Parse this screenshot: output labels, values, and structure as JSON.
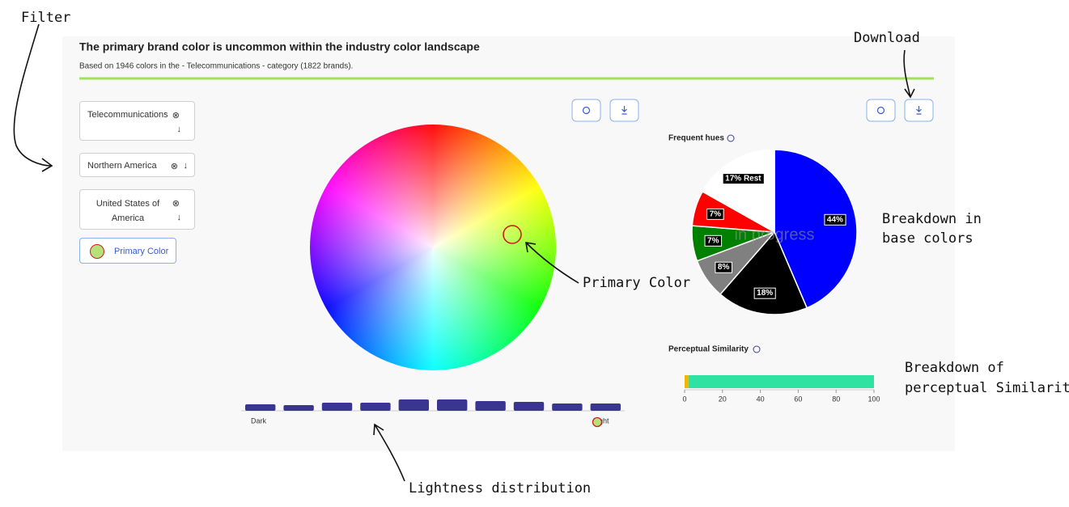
{
  "header": {
    "title": "The primary brand color is uncommon within the industry color landscape",
    "subtitle": "Based on 1946 colors in the - Telecommunications - category (1822 brands)."
  },
  "filters": [
    "Telecommunications",
    "Northern America",
    "United States of America"
  ],
  "legend": "Primary Color",
  "annotations": {
    "filter": [
      "Filter"
    ],
    "download": [
      "Download"
    ],
    "base_colors": [
      "Breakdown in",
      "base colors"
    ],
    "primary_color": [
      "Primary Color"
    ],
    "similarity": [
      "Breakdown of",
      "perceptual Similarity"
    ],
    "lightness": [
      "Lightness distribution"
    ]
  },
  "chart_data": [
    {
      "type": "pie",
      "title": "Frequent hues",
      "watermark": "in progress",
      "values": [
        44,
        18,
        8,
        7,
        7,
        17
      ],
      "value_labels": [
        "44%",
        "18%",
        "8%",
        "7%",
        "7%",
        "17% Rest"
      ],
      "colors": [
        "#0000ff",
        "#000000",
        "#808080",
        "#008000",
        "#ff0000",
        "#ffffff"
      ]
    },
    {
      "type": "bar",
      "axis_labels": [
        "Dark",
        "Light"
      ],
      "color": "#3b3592",
      "values": [
        8,
        7,
        10,
        10,
        14,
        14,
        12,
        11,
        9,
        9
      ]
    },
    {
      "type": "stacked_bar",
      "title": "Perceptual Similarity",
      "xlim": [
        0,
        100
      ],
      "xticks": [
        0,
        20,
        40,
        60,
        80,
        100
      ],
      "series": [
        {
          "color": "#f5b400",
          "values": [
            2
          ]
        },
        {
          "color": "#2ee3a2",
          "values": [
            98
          ]
        }
      ]
    }
  ]
}
